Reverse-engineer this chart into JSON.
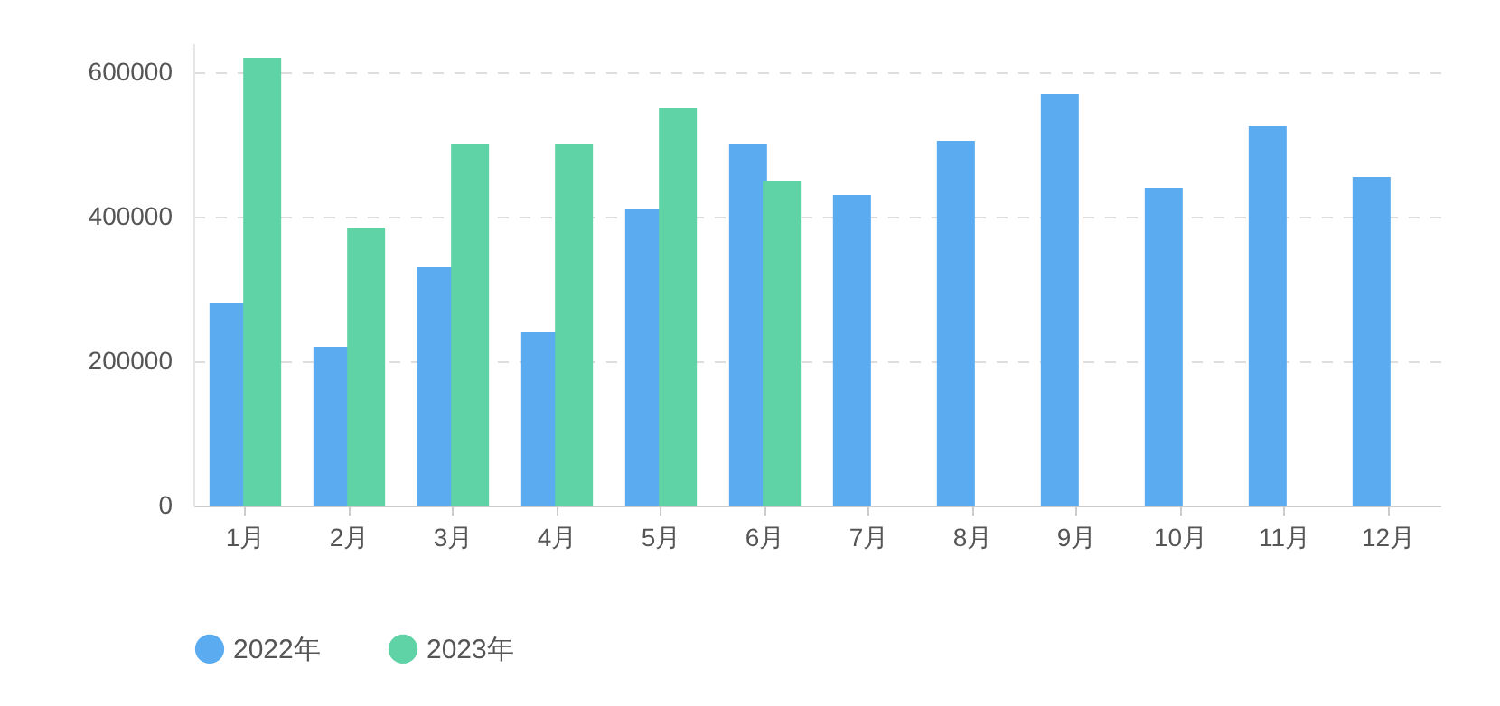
{
  "chart_data": {
    "type": "bar",
    "categories": [
      "1月",
      "2月",
      "3月",
      "4月",
      "5月",
      "6月",
      "7月",
      "8月",
      "9月",
      "10月",
      "11月",
      "12月"
    ],
    "series": [
      {
        "name": "2022年",
        "color": "#5aabf0",
        "values": [
          280000,
          220000,
          330000,
          240000,
          410000,
          500000,
          430000,
          505000,
          570000,
          440000,
          525000,
          455000
        ]
      },
      {
        "name": "2023年",
        "color": "#5fd3a5",
        "values": [
          620000,
          385000,
          500000,
          500000,
          550000,
          450000,
          null,
          null,
          null,
          null,
          null,
          null
        ]
      }
    ],
    "ylim": [
      0,
      640000
    ],
    "yticks": [
      0,
      200000,
      400000,
      600000
    ],
    "grid": "y",
    "legend": "bottom"
  }
}
